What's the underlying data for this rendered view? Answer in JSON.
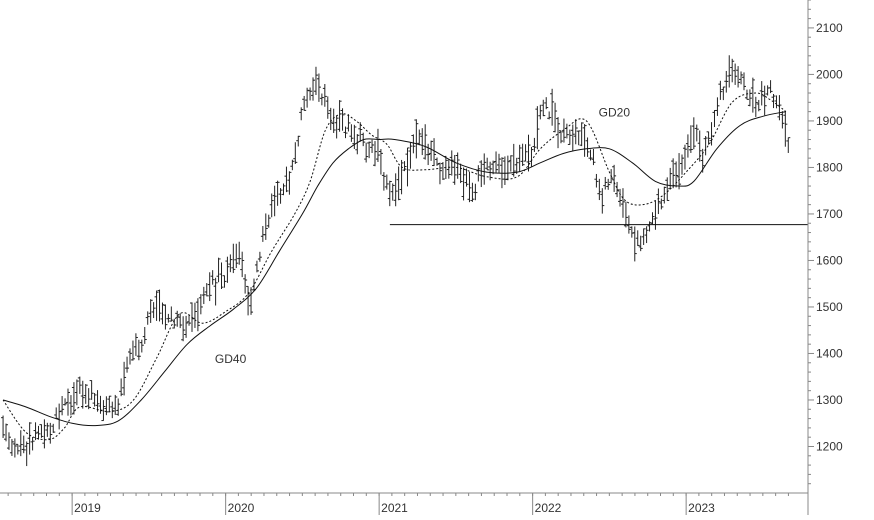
{
  "chart_data": {
    "type": "ohlc",
    "title": "",
    "xlabel": "",
    "ylabel": "",
    "ylim": [
      1100,
      2160
    ],
    "y_ticks": [
      1200,
      1300,
      1400,
      1500,
      1600,
      1700,
      1800,
      1900,
      2000,
      2100
    ],
    "x_ticks": [
      "2019",
      "2020",
      "2021",
      "2022",
      "2023"
    ],
    "grid": false,
    "annotations": [
      {
        "text": "GD20",
        "x": 2022.43,
        "y": 1910
      },
      {
        "text": "GD40",
        "x": 2019.93,
        "y": 1380
      }
    ],
    "horizontal_line": {
      "value": 1677,
      "x_start": 2021.07,
      "x_end": 2024.5
    },
    "price_anchors": {
      "x": [
        2018.55,
        2018.62,
        2018.68,
        2018.75,
        2018.85,
        2018.95,
        2019.05,
        2019.15,
        2019.22,
        2019.3,
        2019.38,
        2019.45,
        2019.52,
        2019.58,
        2019.65,
        2019.72,
        2019.8,
        2019.9,
        2020.0,
        2020.08,
        2020.15,
        2020.2,
        2020.25,
        2020.32,
        2020.4,
        2020.45,
        2020.52,
        2020.6,
        2020.7,
        2020.8,
        2020.9,
        2021.0,
        2021.05,
        2021.1,
        2021.15,
        2021.25,
        2021.35,
        2021.42,
        2021.5,
        2021.6,
        2021.7,
        2021.8,
        2021.9,
        2022.0,
        2022.05,
        2022.12,
        2022.2,
        2022.28,
        2022.38,
        2022.45,
        2022.5,
        2022.58,
        2022.65,
        2022.72,
        2022.8,
        2022.88,
        2022.95,
        2023.05,
        2023.12,
        2023.2,
        2023.28,
        2023.35,
        2023.45,
        2023.55,
        2023.62,
        2023.68
      ],
      "y": [
        1235,
        1205,
        1195,
        1215,
        1230,
        1285,
        1320,
        1300,
        1280,
        1290,
        1400,
        1420,
        1510,
        1500,
        1475,
        1460,
        1480,
        1555,
        1560,
        1620,
        1500,
        1580,
        1670,
        1730,
        1770,
        1820,
        1960,
        1980,
        1900,
        1880,
        1850,
        1840,
        1760,
        1735,
        1780,
        1870,
        1830,
        1780,
        1810,
        1750,
        1810,
        1790,
        1810,
        1840,
        1930,
        1920,
        1860,
        1880,
        1840,
        1730,
        1780,
        1740,
        1650,
        1640,
        1700,
        1760,
        1800,
        1880,
        1820,
        1940,
        2000,
        1990,
        1930,
        1960,
        1920,
        1820
      ]
    },
    "series": [
      {
        "name": "GD20",
        "style": "dashed",
        "x": [
          2018.55,
          2018.7,
          2018.85,
          2018.95,
          2019.05,
          2019.25,
          2019.4,
          2019.55,
          2019.7,
          2019.85,
          2020.0,
          2020.15,
          2020.3,
          2020.45,
          2020.55,
          2020.65,
          2020.75,
          2020.85,
          2020.95,
          2021.05,
          2021.15,
          2021.3,
          2021.5,
          2021.7,
          2021.9,
          2022.05,
          2022.2,
          2022.35,
          2022.5,
          2022.6,
          2022.72,
          2022.85,
          2023.0,
          2023.15,
          2023.3,
          2023.45,
          2023.55,
          2023.65
        ],
        "y": [
          1300,
          1230,
          1215,
          1240,
          1285,
          1275,
          1300,
          1390,
          1485,
          1465,
          1490,
          1530,
          1620,
          1700,
          1770,
          1880,
          1915,
          1900,
          1870,
          1850,
          1800,
          1795,
          1800,
          1780,
          1780,
          1840,
          1880,
          1900,
          1790,
          1730,
          1720,
          1740,
          1790,
          1850,
          1940,
          1960,
          1945,
          1920
        ]
      },
      {
        "name": "GD40",
        "style": "solid",
        "x": [
          2018.55,
          2018.7,
          2018.85,
          2019.0,
          2019.15,
          2019.3,
          2019.45,
          2019.6,
          2019.75,
          2019.9,
          2020.05,
          2020.2,
          2020.35,
          2020.5,
          2020.6,
          2020.7,
          2020.8,
          2020.9,
          2021.0,
          2021.1,
          2021.3,
          2021.5,
          2021.7,
          2021.9,
          2022.05,
          2022.2,
          2022.35,
          2022.5,
          2022.65,
          2022.8,
          2022.95,
          2023.05,
          2023.2,
          2023.35,
          2023.5,
          2023.65
        ],
        "y": [
          1300,
          1285,
          1265,
          1250,
          1245,
          1255,
          1300,
          1360,
          1420,
          1460,
          1495,
          1540,
          1620,
          1700,
          1760,
          1810,
          1840,
          1860,
          1860,
          1860,
          1845,
          1810,
          1790,
          1790,
          1810,
          1830,
          1840,
          1840,
          1810,
          1770,
          1760,
          1770,
          1840,
          1890,
          1910,
          1920
        ]
      }
    ]
  }
}
